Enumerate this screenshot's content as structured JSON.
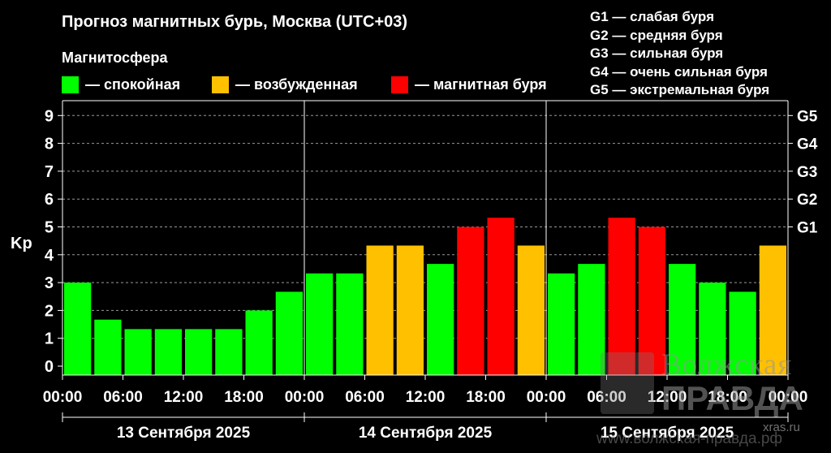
{
  "header": {
    "title": "Прогноз магнитных бурь, Москва (UTC+03)",
    "magnetosphere_label": "Магнитосфера"
  },
  "legend": [
    {
      "label": "— спокойная",
      "color": "#00FF00"
    },
    {
      "label": "— возбужденная",
      "color": "#FFC000"
    },
    {
      "label": "— магнитная буря",
      "color": "#FF0000"
    }
  ],
  "g_scale": [
    "G1 — слабая буря",
    "G2 — средняя буря",
    "G3 — сильная буря",
    "G4 — очень сильная буря",
    "G5 — экстремальная буря"
  ],
  "watermark": {
    "line1": "Волжская",
    "line2": "ПРАВДА",
    "site": "xras.ru",
    "url": "www.волжская-правда.рф"
  },
  "chart_data": {
    "type": "bar",
    "ylabel": "Kp",
    "ylim": [
      0,
      9
    ],
    "yticks": [
      0,
      1,
      2,
      3,
      4,
      5,
      6,
      7,
      8,
      9
    ],
    "right_axis_labels": [
      {
        "value": 5,
        "label": "G1"
      },
      {
        "value": 6,
        "label": "G2"
      },
      {
        "value": 7,
        "label": "G3"
      },
      {
        "value": 8,
        "label": "G4"
      },
      {
        "value": 9,
        "label": "G5"
      }
    ],
    "grid": "dashed horizontal",
    "x_tick_labels": [
      "00:00",
      "06:00",
      "12:00",
      "18:00",
      "00:00",
      "06:00",
      "12:00",
      "18:00",
      "00:00",
      "06:00",
      "12:00",
      "18:00",
      "00:00"
    ],
    "days": [
      "13 Сентября 2025",
      "14 Сентября 2025",
      "15 Сентября 2025"
    ],
    "values": [
      3.0,
      1.67,
      1.33,
      1.33,
      1.33,
      1.33,
      2.0,
      2.67,
      3.33,
      3.33,
      4.33,
      4.33,
      3.67,
      5.0,
      5.33,
      4.33,
      3.33,
      3.67,
      5.33,
      5.0,
      3.67,
      3.0,
      2.67,
      4.33
    ],
    "categories": [
      "quiet",
      "quiet",
      "quiet",
      "quiet",
      "quiet",
      "quiet",
      "quiet",
      "quiet",
      "quiet",
      "quiet",
      "active",
      "active",
      "quiet",
      "storm",
      "storm",
      "active",
      "quiet",
      "quiet",
      "storm",
      "storm",
      "quiet",
      "quiet",
      "quiet",
      "active"
    ],
    "colors": {
      "quiet": "#00FF00",
      "active": "#FFC000",
      "storm": "#FF0000"
    }
  }
}
